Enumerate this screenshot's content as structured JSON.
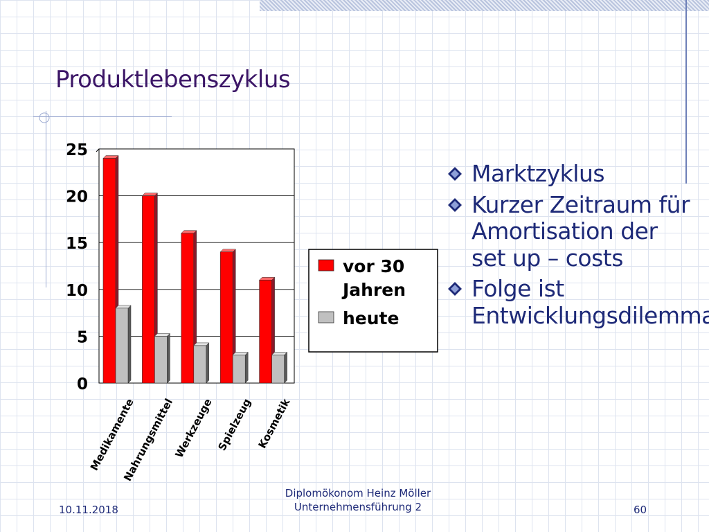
{
  "slide": {
    "title": "Produktlebenszyklus",
    "bullets": [
      "Marktzyklus",
      "Kurzer Zeitraum für Amortisation der set up – costs",
      "Folge ist Entwicklungsdilemma"
    ]
  },
  "footer": {
    "date": "10.11.2018",
    "author": "Diplomökonom Heinz Möller",
    "course": "Unternehmensführung 2",
    "page": "60"
  },
  "colors": {
    "series_vor30": "#ff0000",
    "series_heute": "#c0c0c0",
    "title": "#3b1566",
    "text": "#1e2a78"
  },
  "chart_data": {
    "type": "bar",
    "categories": [
      "Medikamente",
      "Nahrungsmittel",
      "Werkzeuge",
      "Spielzeug",
      "Kosmetik"
    ],
    "series": [
      {
        "name": "vor 30 Jahren",
        "values": [
          24,
          20,
          16,
          14,
          11
        ]
      },
      {
        "name": "heute",
        "values": [
          8,
          5,
          4,
          3,
          3
        ]
      }
    ],
    "y_ticks": [
      "0",
      "5",
      "10",
      "15",
      "20",
      "25"
    ],
    "ylim": [
      0,
      25
    ],
    "grid": true,
    "legend_position": "right"
  }
}
